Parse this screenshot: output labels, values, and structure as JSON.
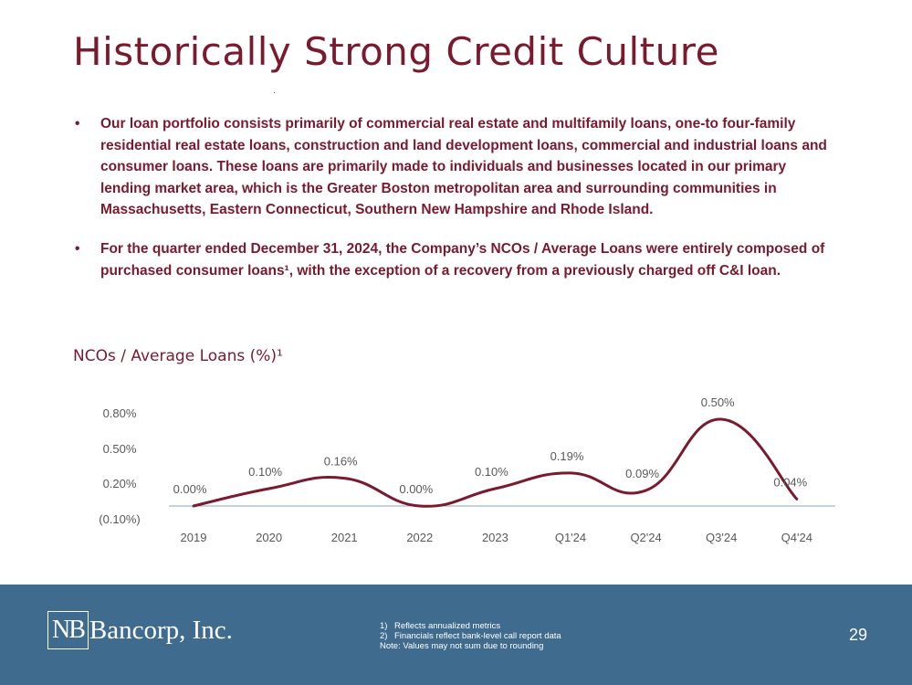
{
  "slide": {
    "title": "Historically Strong Credit Culture",
    "bullets": [
      "Our loan portfolio consists primarily of commercial real estate and multifamily loans, one-to four-family residential real estate loans, construction and land development loans, commercial and industrial loans and consumer loans. These loans are primarily made to individuals and businesses located in our primary lending market area, which is the Greater Boston metropolitan area and surrounding communities in Massachusetts, Eastern Connecticut, Southern New Hampshire and Rhode Island.",
      "For the quarter ended December 31, 2024, the Company’s NCOs / Average Loans were entirely composed of purchased consumer loans¹, with the exception of a recovery from a previously charged off C&I loan."
    ],
    "bullet_glyph": "•",
    "chart_heading": "NCOs / Average Loans (%)¹"
  },
  "chart_data": {
    "type": "line",
    "title": "NCOs / Average Loans (%)¹",
    "xlabel": "",
    "ylabel": "",
    "categories": [
      "2019",
      "2020",
      "2021",
      "2022",
      "2023",
      "Q1'24",
      "Q2'24",
      "Q3'24",
      "Q4'24"
    ],
    "series": [
      {
        "name": "NCOs / Average Loans (%)",
        "values": [
          0.0,
          0.1,
          0.16,
          0.0,
          0.1,
          0.19,
          0.09,
          0.5,
          0.04
        ]
      }
    ],
    "data_labels": [
      "0.00%",
      "0.10%",
      "0.16%",
      "0.00%",
      "0.10%",
      "0.19%",
      "0.09%",
      "0.50%",
      "0.04%"
    ],
    "y_ticks": [
      {
        "value": 0.8,
        "label": "0.80%"
      },
      {
        "value": 0.5,
        "label": "0.50%"
      },
      {
        "value": 0.2,
        "label": "0.20%"
      },
      {
        "value": -0.1,
        "label": "(0.10%)"
      }
    ],
    "ylim": [
      -0.1,
      0.8
    ],
    "grid": false,
    "line_color": "#7a1a2e",
    "axis_color": "#8aa8bc",
    "label_color": "#595959"
  },
  "footer": {
    "logo_mark": "NB",
    "logo_name": "Bancorp, Inc.",
    "notes": [
      {
        "num": "1)",
        "text": "Reflects annualized metrics"
      },
      {
        "num": "2)",
        "text": "Financials reflect bank-level call report data"
      },
      {
        "num": "",
        "text": "Note: Values may not sum due to rounding"
      }
    ],
    "page_number": "29",
    "background": "#3f6b8e"
  }
}
